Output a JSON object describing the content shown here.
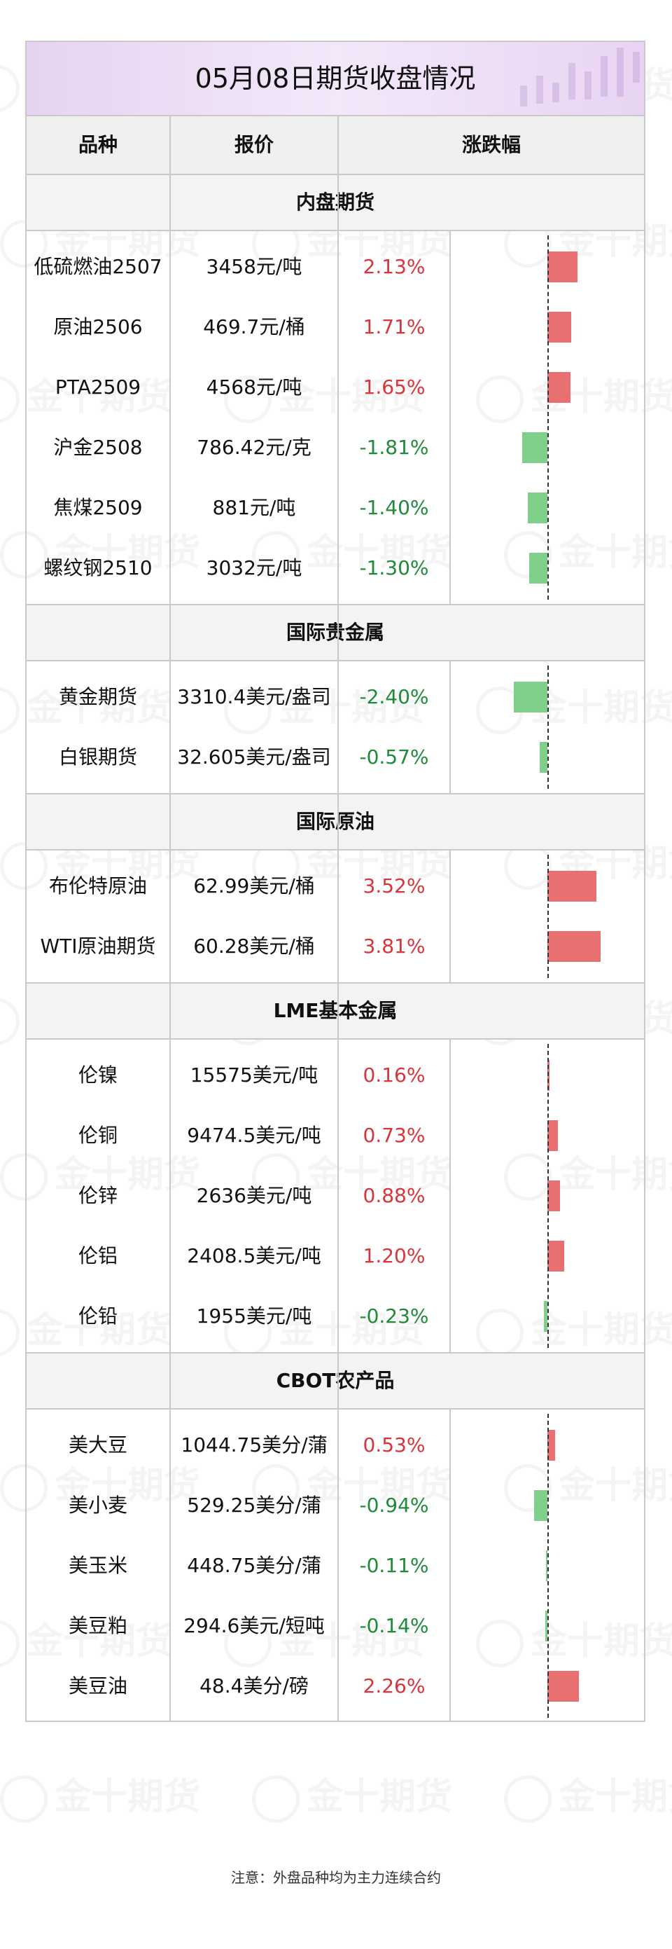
{
  "title": "05月08日期货收盘情况",
  "headers": {
    "name": "品种",
    "price": "报价",
    "change": "涨跌幅"
  },
  "watermark_text": "金十期货",
  "colors": {
    "up": "#d9343b",
    "down": "#1f8a3a",
    "up_bar": "#e87070",
    "down_bar": "#7fcf8a",
    "title_bg": "#ecdcf5"
  },
  "sections": [
    {
      "title": "内盘期货",
      "rows": [
        {
          "name": "低硫燃油2507",
          "price": "3458元/吨",
          "change": "2.13%",
          "value": 2.13
        },
        {
          "name": "原油2506",
          "price": "469.7元/桶",
          "change": "1.71%",
          "value": 1.71
        },
        {
          "name": "PTA2509",
          "price": "4568元/吨",
          "change": "1.65%",
          "value": 1.65
        },
        {
          "name": "沪金2508",
          "price": "786.42元/克",
          "change": "-1.81%",
          "value": -1.81
        },
        {
          "name": "焦煤2509",
          "price": "881元/吨",
          "change": "-1.40%",
          "value": -1.4
        },
        {
          "name": "螺纹钢2510",
          "price": "3032元/吨",
          "change": "-1.30%",
          "value": -1.3
        }
      ]
    },
    {
      "title": "国际贵金属",
      "rows": [
        {
          "name": "黄金期货",
          "price": "3310.4美元/盎司",
          "change": "-2.40%",
          "value": -2.4
        },
        {
          "name": "白银期货",
          "price": "32.605美元/盎司",
          "change": "-0.57%",
          "value": -0.57
        }
      ]
    },
    {
      "title": "国际原油",
      "rows": [
        {
          "name": "布伦特原油",
          "price": "62.99美元/桶",
          "change": "3.52%",
          "value": 3.52
        },
        {
          "name": "WTI原油期货",
          "price": "60.28美元/桶",
          "change": "3.81%",
          "value": 3.81
        }
      ]
    },
    {
      "title": "LME基本金属",
      "rows": [
        {
          "name": "伦镍",
          "price": "15575美元/吨",
          "change": "0.16%",
          "value": 0.16
        },
        {
          "name": "伦铜",
          "price": "9474.5美元/吨",
          "change": "0.73%",
          "value": 0.73
        },
        {
          "name": "伦锌",
          "price": "2636美元/吨",
          "change": "0.88%",
          "value": 0.88
        },
        {
          "name": "伦铝",
          "price": "2408.5美元/吨",
          "change": "1.20%",
          "value": 1.2
        },
        {
          "name": "伦铅",
          "price": "1955美元/吨",
          "change": "-0.23%",
          "value": -0.23
        }
      ]
    },
    {
      "title": "CBOT农产品",
      "rows": [
        {
          "name": "美大豆",
          "price": "1044.75美分/蒲",
          "change": "0.53%",
          "value": 0.53
        },
        {
          "name": "美小麦",
          "price": "529.25美分/蒲",
          "change": "-0.94%",
          "value": -0.94
        },
        {
          "name": "美玉米",
          "price": "448.75美分/蒲",
          "change": "-0.11%",
          "value": -0.11
        },
        {
          "name": "美豆粕",
          "price": "294.6美元/短吨",
          "change": "-0.14%",
          "value": -0.14
        },
        {
          "name": "美豆油",
          "price": "48.4美分/磅",
          "change": "2.26%",
          "value": 2.26
        }
      ]
    }
  ],
  "footnote": "注意：外盘品种均为主力连续合约"
}
